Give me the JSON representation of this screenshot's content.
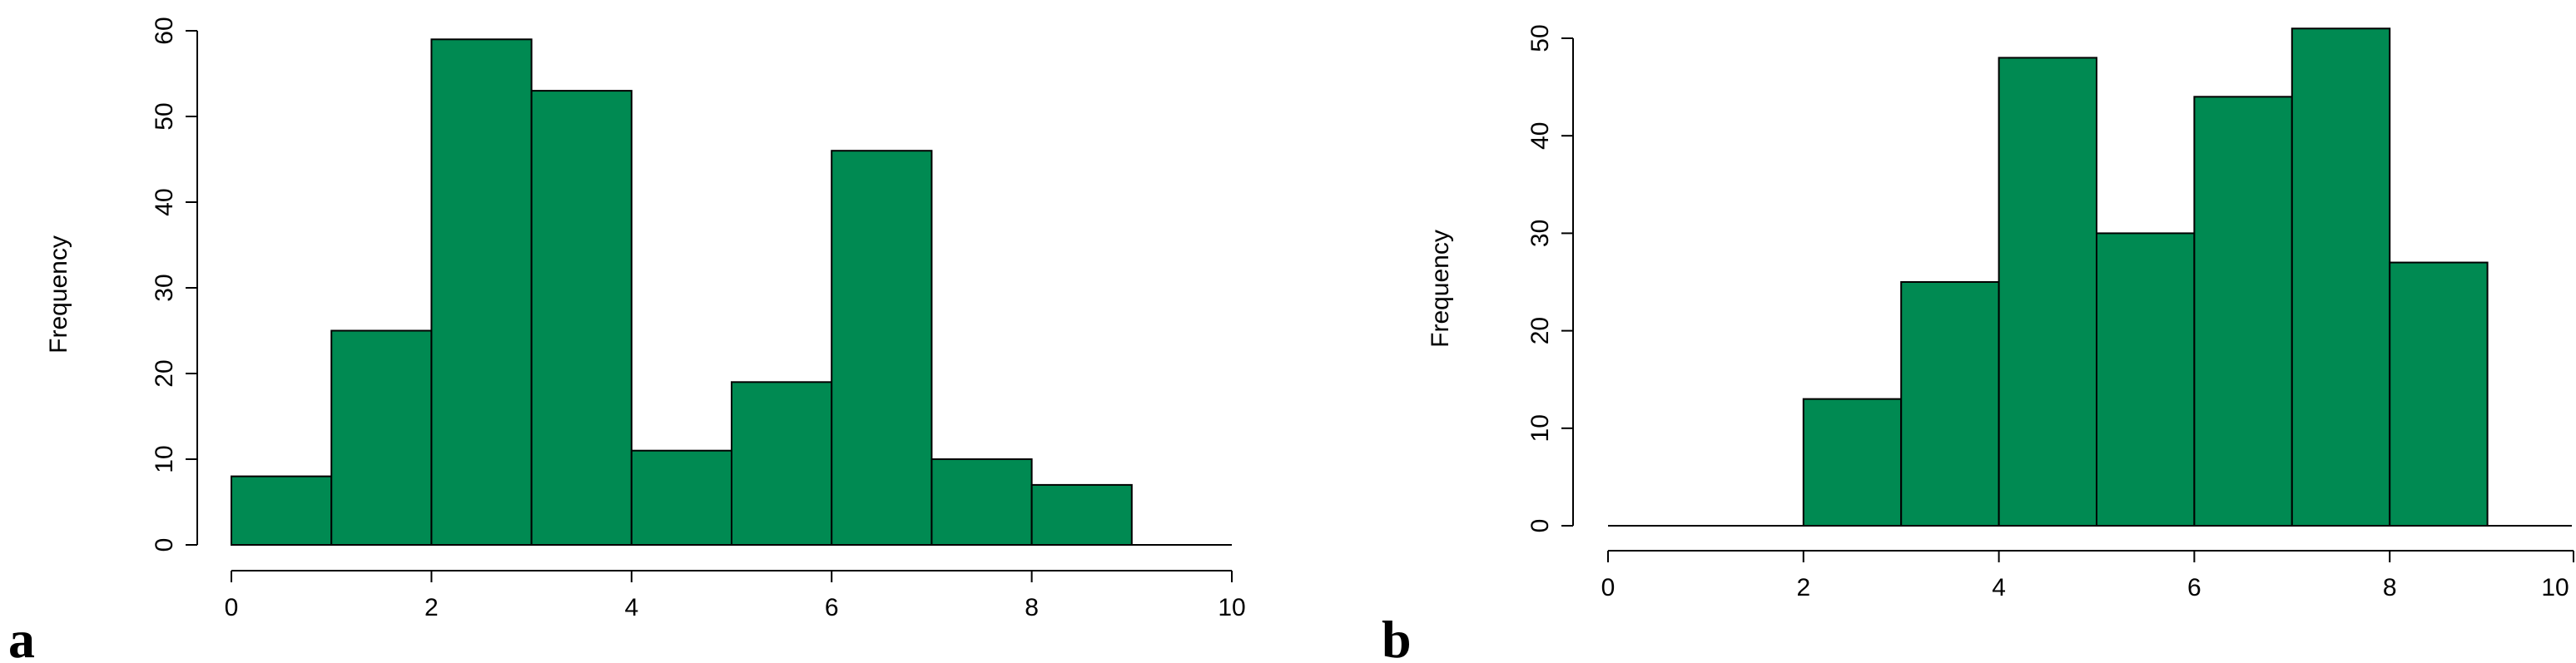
{
  "colors": {
    "bar_fill": "#008a52",
    "bar_stroke": "#000000"
  },
  "chart_data": [
    {
      "type": "bar",
      "panel_label": "a",
      "ylabel": "Frequency",
      "bins": [
        [
          0,
          1
        ],
        [
          1,
          2
        ],
        [
          2,
          3
        ],
        [
          3,
          4
        ],
        [
          4,
          5
        ],
        [
          5,
          6
        ],
        [
          6,
          7
        ],
        [
          7,
          8
        ],
        [
          8,
          9
        ]
      ],
      "values": [
        8,
        25,
        59,
        53,
        11,
        19,
        46,
        10,
        7
      ],
      "xlim": [
        0,
        10
      ],
      "ylim": [
        0,
        60
      ],
      "xticks": [
        0,
        2,
        4,
        6,
        8,
        10
      ],
      "yticks": [
        0,
        10,
        20,
        30,
        40,
        50,
        60
      ],
      "grid": false
    },
    {
      "type": "bar",
      "panel_label": "b",
      "ylabel": "Frequency",
      "bins": [
        [
          2,
          3
        ],
        [
          3,
          4
        ],
        [
          4,
          5
        ],
        [
          5,
          6
        ],
        [
          6,
          7
        ],
        [
          7,
          8
        ],
        [
          8,
          9
        ]
      ],
      "values": [
        13,
        25,
        48,
        30,
        44,
        51,
        27
      ],
      "xlim": [
        0,
        10
      ],
      "ylim": [
        0,
        50
      ],
      "xticks": [
        0,
        2,
        4,
        6,
        8,
        10
      ],
      "yticks": [
        0,
        10,
        20,
        30,
        40,
        50
      ],
      "grid": false
    }
  ]
}
